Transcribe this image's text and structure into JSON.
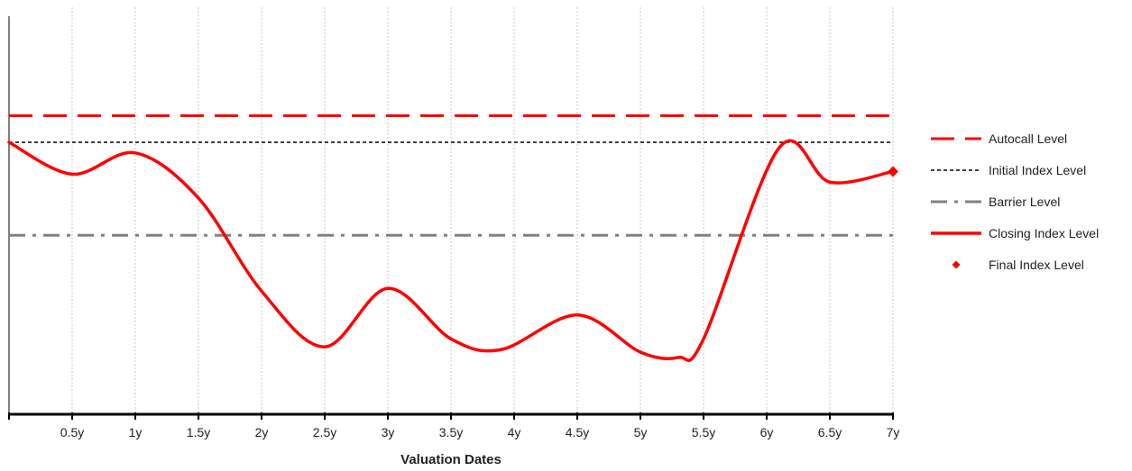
{
  "chart_data": {
    "type": "line",
    "title": "",
    "xlabel": "Valuation Dates",
    "ylabel": "",
    "x_ticks": [
      "0.5y",
      "1y",
      "1.5y",
      "2y",
      "2.5y",
      "3y",
      "3.5y",
      "4y",
      "4.5y",
      "5y",
      "5.5y",
      "6y",
      "6.5y",
      "7y"
    ],
    "xlim": [
      0,
      7
    ],
    "ylim": [
      0,
      100
    ],
    "grid": "vertical",
    "legend_position": "right",
    "reference_lines": [
      {
        "name": "Autocall Level",
        "y": 110,
        "color": "#ff0000",
        "style": "long-dash"
      },
      {
        "name": "Initial Index Level",
        "y": 100,
        "color": "#000000",
        "style": "dotted"
      },
      {
        "name": "Barrier Level",
        "y": 65,
        "color": "#808080",
        "style": "dash-dot"
      }
    ],
    "series": [
      {
        "name": "Closing Index Level",
        "color": "#ff0000",
        "x": [
          0,
          0.5,
          1.0,
          1.5,
          2.0,
          2.5,
          3.0,
          3.5,
          3.9,
          4.5,
          5.0,
          5.3,
          5.5,
          6.1,
          6.5,
          7.0
        ],
        "y": [
          100,
          88,
          96,
          79,
          44,
          23,
          45,
          26,
          22,
          35,
          21,
          19,
          26,
          98,
          85,
          89
        ]
      }
    ],
    "final_point": {
      "name": "Final Index Level",
      "x": 7,
      "y": 89,
      "color": "#ff0000"
    }
  }
}
